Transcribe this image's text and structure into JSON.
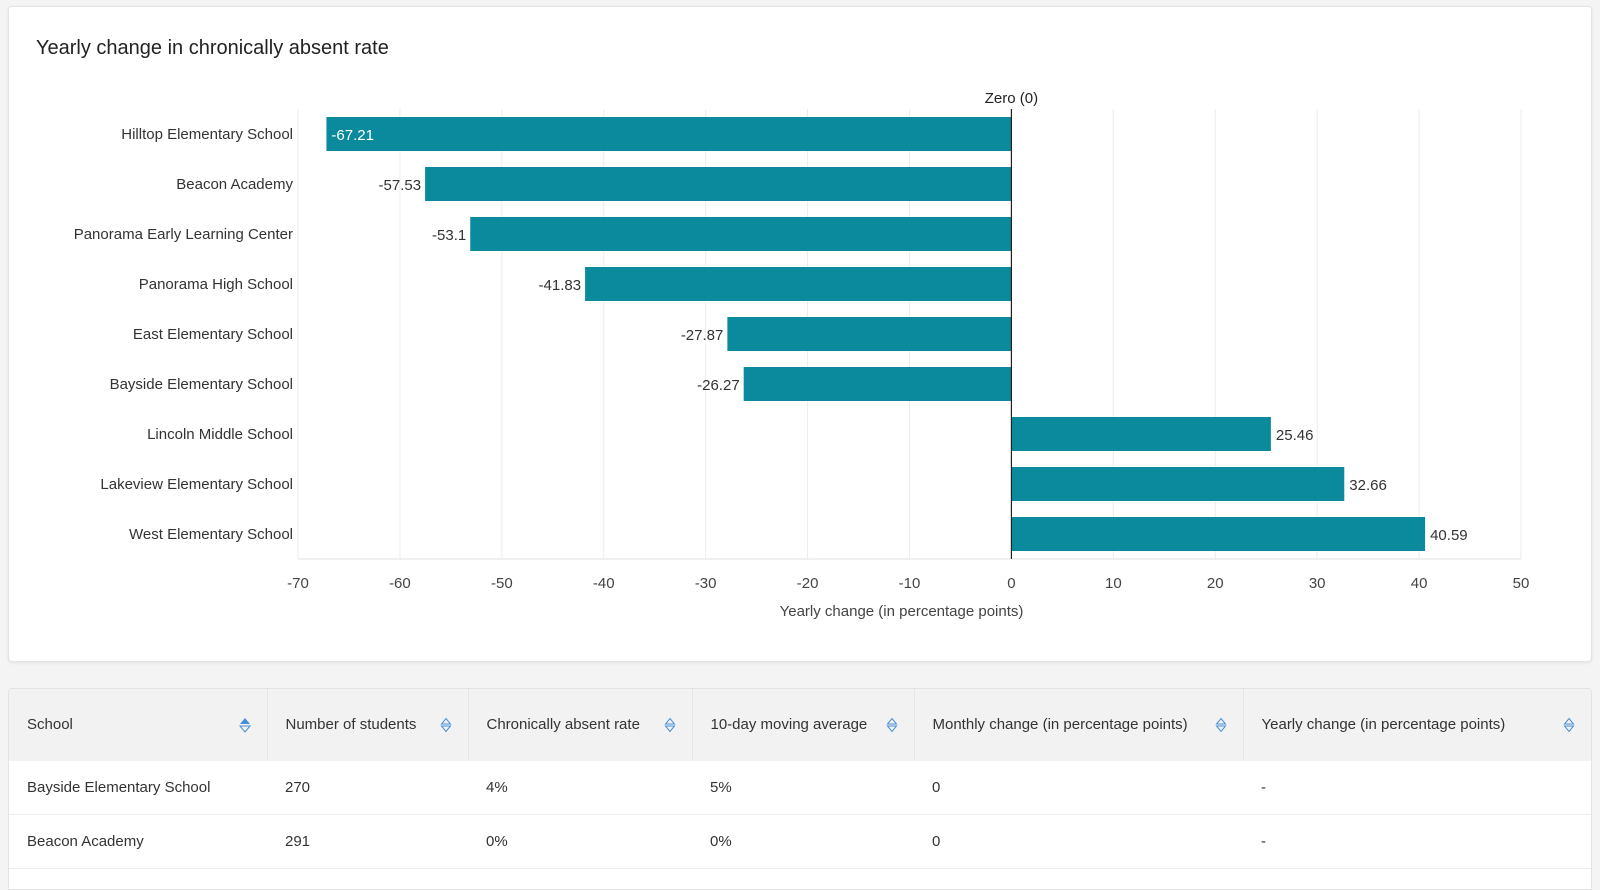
{
  "card": {
    "title": "Yearly change in chronically absent rate"
  },
  "chart_data": {
    "type": "bar",
    "orientation": "horizontal",
    "title": "Yearly change in chronically absent rate",
    "xlabel": "Yearly change (in percentage points)",
    "ylabel": "",
    "categories": [
      "Hilltop Elementary School",
      "Beacon Academy",
      "Panorama Early Learning Center",
      "Panorama High School",
      "East Elementary School",
      "Bayside Elementary School",
      "Lincoln Middle School",
      "Lakeview Elementary School",
      "West Elementary School"
    ],
    "values": [
      -67.21,
      -57.53,
      -53.1,
      -41.83,
      -27.87,
      -26.27,
      25.46,
      32.66,
      40.59
    ],
    "xlim": [
      -70,
      50
    ],
    "xticks": [
      -70,
      -60,
      -50,
      -40,
      -30,
      -20,
      -10,
      0,
      10,
      20,
      30,
      40,
      50
    ],
    "reference_line": {
      "value": 0,
      "label": "Zero (0)"
    },
    "bar_color": "#0b8a9e",
    "grid": true
  },
  "table": {
    "columns": [
      "School",
      "Number of students",
      "Chronically absent rate",
      "10-day moving average",
      "Monthly change (in percentage points)",
      "Yearly change (in percentage points)"
    ],
    "rows": [
      [
        "Bayside Elementary School",
        "270",
        "4%",
        "5%",
        "0",
        "-"
      ],
      [
        "Beacon Academy",
        "291",
        "0%",
        "0%",
        "0",
        "-"
      ]
    ],
    "sorted_column": "School",
    "sort_icon_color": "#4a8fd6"
  }
}
